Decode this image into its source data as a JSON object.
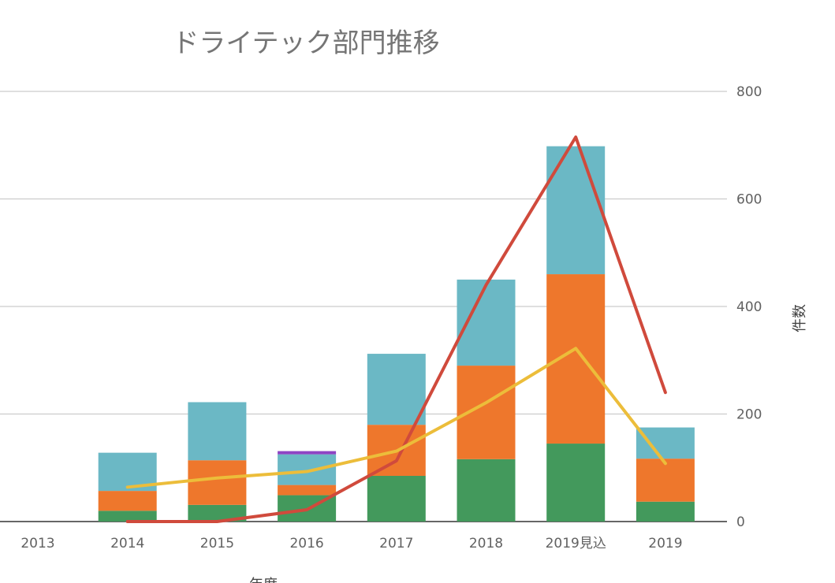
{
  "chart_data": {
    "type": "bar",
    "stacked": true,
    "title": "ドライテック部門推移",
    "xlabel": "年度",
    "ylabel": "件数",
    "ylim": [
      0,
      800
    ],
    "yticks": [
      0,
      200,
      400,
      600,
      800
    ],
    "y_axis_side": "right",
    "grid": true,
    "legend": "none",
    "categories": [
      "2013",
      "2014",
      "2015",
      "2016",
      "2017",
      "2018",
      "2019見込",
      "2019"
    ],
    "series": [
      {
        "type": "bar",
        "color": "#43995c",
        "values": [
          0,
          20,
          31,
          49,
          85,
          116,
          145,
          37
        ]
      },
      {
        "type": "bar",
        "color": "#ee772c",
        "values": [
          0,
          37,
          83,
          19,
          95,
          174,
          315,
          80
        ]
      },
      {
        "type": "bar",
        "color": "#6bb8c5",
        "values": [
          0,
          71,
          108,
          57,
          132,
          160,
          238,
          58
        ]
      },
      {
        "type": "bar",
        "color": "#8e44c4",
        "values": [
          0,
          0,
          0,
          6,
          0,
          0,
          0,
          0
        ]
      },
      {
        "type": "line",
        "color": "#d04a3c",
        "values": [
          null,
          0,
          0,
          22,
          113,
          440,
          715,
          240
        ]
      },
      {
        "type": "line",
        "color": "#ecbd3a",
        "values": [
          null,
          64,
          81,
          93,
          131,
          221,
          322,
          108
        ]
      }
    ]
  }
}
